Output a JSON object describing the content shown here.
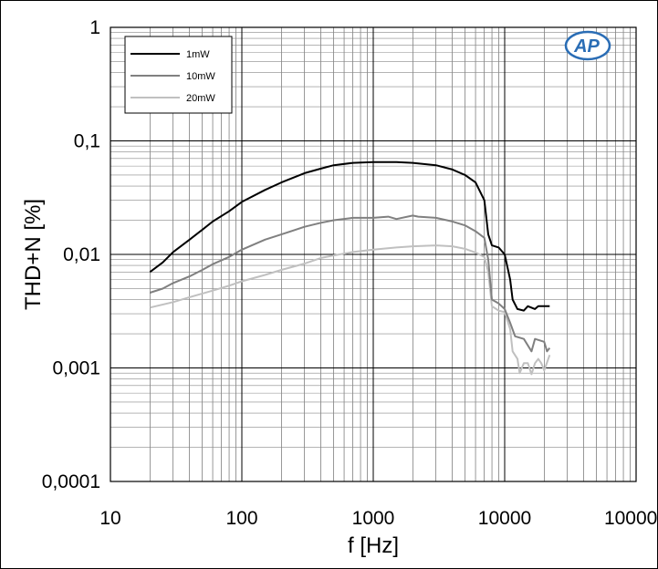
{
  "chart_data": {
    "type": "line",
    "title": "",
    "xlabel": "f [Hz]",
    "ylabel": "THD+N [%]",
    "x_scale": "log",
    "y_scale": "log",
    "xlim": [
      10,
      100000
    ],
    "ylim": [
      0.0001,
      1
    ],
    "x_ticks": [
      "10",
      "100",
      "1000",
      "10000",
      "100000"
    ],
    "y_ticks": [
      "1",
      "0,1",
      "0,01",
      "0,001",
      "0,0001"
    ],
    "grid": true,
    "legend_position": "top-left",
    "logo_text": "AP",
    "series": [
      {
        "name": "1mW",
        "color": "#000000",
        "points": [
          [
            20,
            0.007
          ],
          [
            25,
            0.0085
          ],
          [
            30,
            0.0105
          ],
          [
            40,
            0.0135
          ],
          [
            50,
            0.0165
          ],
          [
            60,
            0.0195
          ],
          [
            80,
            0.024
          ],
          [
            100,
            0.029
          ],
          [
            150,
            0.037
          ],
          [
            200,
            0.043
          ],
          [
            300,
            0.052
          ],
          [
            400,
            0.057
          ],
          [
            500,
            0.061
          ],
          [
            700,
            0.064
          ],
          [
            1000,
            0.065
          ],
          [
            1500,
            0.065
          ],
          [
            2000,
            0.064
          ],
          [
            3000,
            0.061
          ],
          [
            4000,
            0.056
          ],
          [
            5000,
            0.05
          ],
          [
            6000,
            0.043
          ],
          [
            7000,
            0.03
          ],
          [
            7500,
            0.015
          ],
          [
            8000,
            0.012
          ],
          [
            9000,
            0.0115
          ],
          [
            10000,
            0.01
          ],
          [
            11000,
            0.006
          ],
          [
            11500,
            0.004
          ],
          [
            12500,
            0.0033
          ],
          [
            14000,
            0.0032
          ],
          [
            15000,
            0.0035
          ],
          [
            17000,
            0.0033
          ],
          [
            18000,
            0.0035
          ],
          [
            22000,
            0.0035
          ]
        ]
      },
      {
        "name": "10mW",
        "color": "#808080",
        "points": [
          [
            20,
            0.0046
          ],
          [
            25,
            0.005
          ],
          [
            30,
            0.0056
          ],
          [
            40,
            0.0064
          ],
          [
            50,
            0.0073
          ],
          [
            60,
            0.0082
          ],
          [
            80,
            0.0095
          ],
          [
            100,
            0.011
          ],
          [
            150,
            0.0135
          ],
          [
            200,
            0.015
          ],
          [
            300,
            0.0175
          ],
          [
            400,
            0.019
          ],
          [
            500,
            0.02
          ],
          [
            700,
            0.021
          ],
          [
            1000,
            0.021
          ],
          [
            1300,
            0.0215
          ],
          [
            1500,
            0.0205
          ],
          [
            2000,
            0.022
          ],
          [
            2200,
            0.0215
          ],
          [
            3000,
            0.021
          ],
          [
            4000,
            0.0195
          ],
          [
            5000,
            0.018
          ],
          [
            6000,
            0.016
          ],
          [
            7000,
            0.014
          ],
          [
            7500,
            0.009
          ],
          [
            8000,
            0.004
          ],
          [
            9000,
            0.0037
          ],
          [
            10000,
            0.0033
          ],
          [
            11000,
            0.0025
          ],
          [
            12000,
            0.0019
          ],
          [
            14000,
            0.0018
          ],
          [
            16000,
            0.0014
          ],
          [
            17000,
            0.0018
          ],
          [
            20000,
            0.0017
          ],
          [
            21000,
            0.0014
          ],
          [
            22000,
            0.0015
          ]
        ]
      },
      {
        "name": "20mW",
        "color": "#c0c0c0",
        "points": [
          [
            20,
            0.0034
          ],
          [
            30,
            0.0038
          ],
          [
            40,
            0.0042
          ],
          [
            60,
            0.0048
          ],
          [
            80,
            0.0053
          ],
          [
            100,
            0.0058
          ],
          [
            150,
            0.0066
          ],
          [
            200,
            0.0073
          ],
          [
            300,
            0.0083
          ],
          [
            400,
            0.0093
          ],
          [
            500,
            0.0098
          ],
          [
            700,
            0.0105
          ],
          [
            1000,
            0.011
          ],
          [
            1500,
            0.0115
          ],
          [
            2000,
            0.0118
          ],
          [
            3000,
            0.012
          ],
          [
            4000,
            0.0118
          ],
          [
            5000,
            0.0112
          ],
          [
            6000,
            0.0104
          ],
          [
            7000,
            0.0095
          ],
          [
            7500,
            0.007
          ],
          [
            8000,
            0.0035
          ],
          [
            9000,
            0.0032
          ],
          [
            10000,
            0.0031
          ],
          [
            11000,
            0.0022
          ],
          [
            11500,
            0.0014
          ],
          [
            12500,
            0.0012
          ],
          [
            13000,
            0.0009
          ],
          [
            14000,
            0.0011
          ],
          [
            15000,
            0.0011
          ],
          [
            16000,
            0.00088
          ],
          [
            17000,
            0.0011
          ],
          [
            18000,
            0.0012
          ],
          [
            19000,
            0.0011
          ],
          [
            20000,
            0.00095
          ],
          [
            22000,
            0.0013
          ]
        ]
      }
    ]
  }
}
